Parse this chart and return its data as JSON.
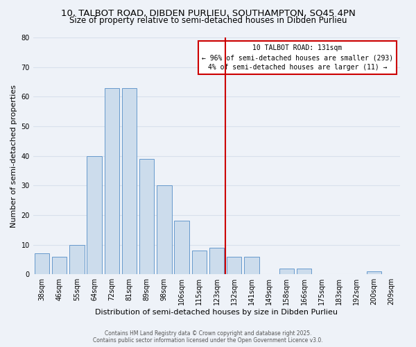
{
  "title_line1": "10, TALBOT ROAD, DIBDEN PURLIEU, SOUTHAMPTON, SO45 4PN",
  "title_line2": "Size of property relative to semi-detached houses in Dibden Purlieu",
  "bar_labels": [
    "38sqm",
    "46sqm",
    "55sqm",
    "64sqm",
    "72sqm",
    "81sqm",
    "89sqm",
    "98sqm",
    "106sqm",
    "115sqm",
    "123sqm",
    "132sqm",
    "141sqm",
    "149sqm",
    "158sqm",
    "166sqm",
    "175sqm",
    "183sqm",
    "192sqm",
    "200sqm",
    "209sqm"
  ],
  "bar_values": [
    7,
    6,
    10,
    40,
    63,
    63,
    39,
    30,
    18,
    8,
    9,
    6,
    6,
    0,
    2,
    2,
    0,
    0,
    0,
    1,
    0
  ],
  "bar_color": "#ccdcec",
  "bar_edgecolor": "#6699cc",
  "vline_x_index": 11,
  "vline_color": "#cc0000",
  "xlabel": "Distribution of semi-detached houses by size in Dibden Purlieu",
  "ylabel": "Number of semi-detached properties",
  "ylim": [
    0,
    80
  ],
  "yticks": [
    0,
    10,
    20,
    30,
    40,
    50,
    60,
    70,
    80
  ],
  "annotation_title": "10 TALBOT ROAD: 131sqm",
  "annotation_line2": "← 96% of semi-detached houses are smaller (293)",
  "annotation_line3": "4% of semi-detached houses are larger (11) →",
  "footer_line1": "Contains HM Land Registry data © Crown copyright and database right 2025.",
  "footer_line2": "Contains public sector information licensed under the Open Government Licence v3.0.",
  "background_color": "#eef2f8",
  "grid_color": "#d8e0ec",
  "title_fontsize": 9.5,
  "subtitle_fontsize": 8.5,
  "axis_label_fontsize": 8,
  "tick_fontsize": 7,
  "footer_fontsize": 5.5
}
